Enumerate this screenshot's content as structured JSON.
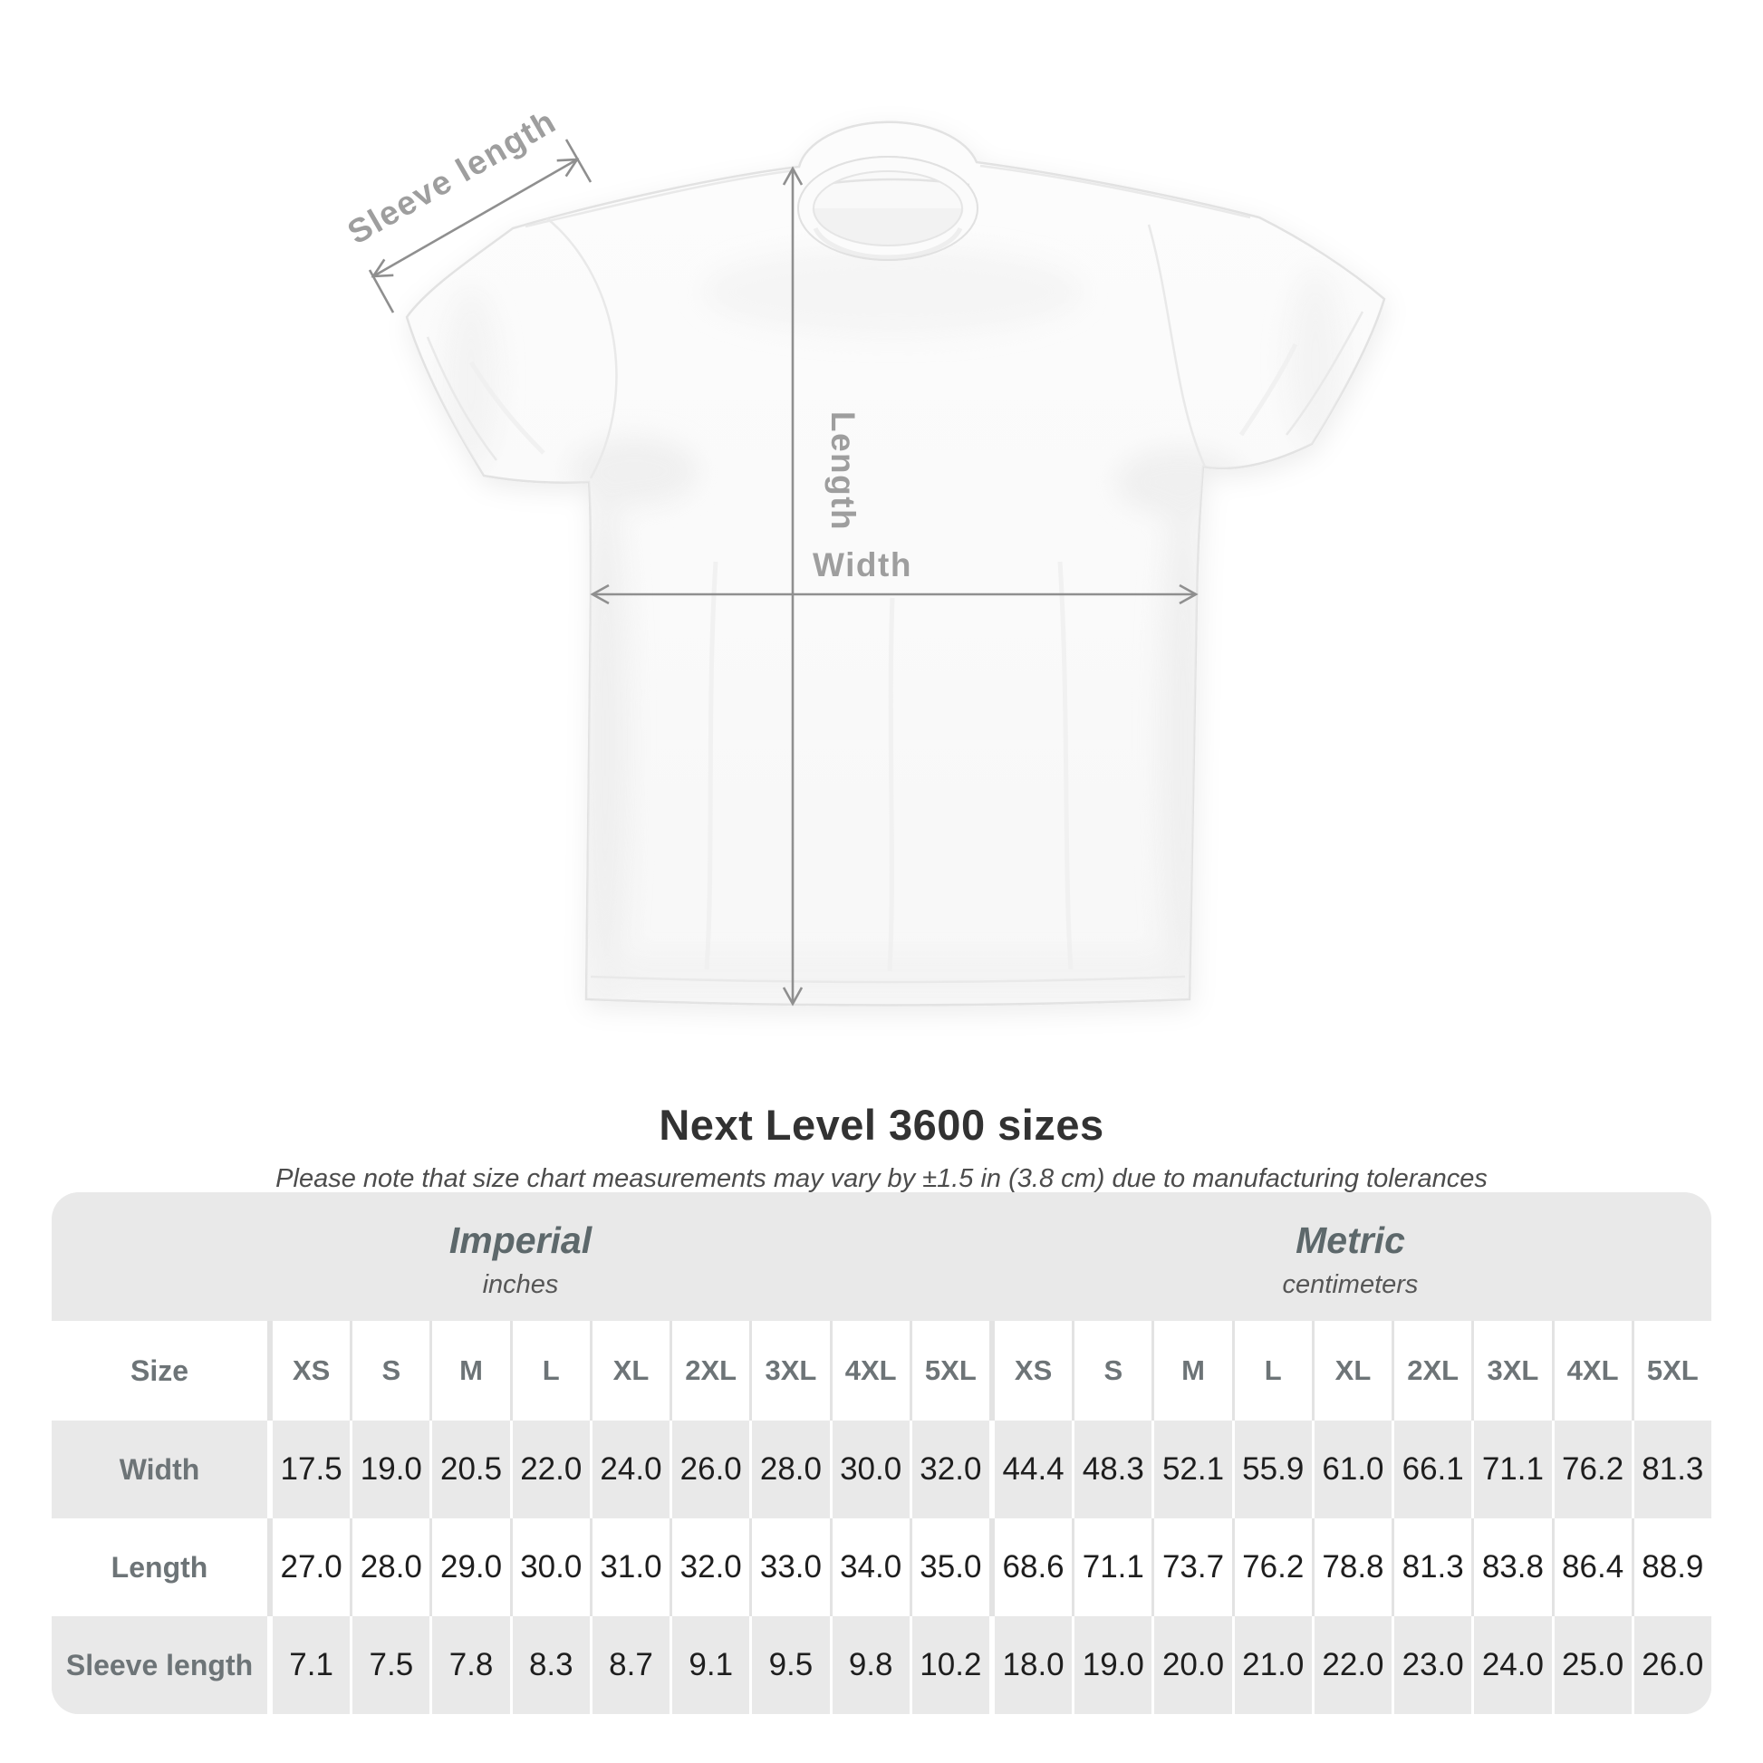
{
  "diagram": {
    "sleeve_length_label": "Sleeve length",
    "length_label": "Length",
    "width_label": "Width",
    "annotation_color": "#9e9e9e"
  },
  "heading": {
    "title": "Next Level 3600 sizes",
    "subtitle": "Please note that size chart measurements may vary by ±1.5 in (3.8 cm) due to manufacturing tolerances"
  },
  "size_chart": {
    "unit_groups": [
      {
        "label": "Imperial",
        "unit": "inches"
      },
      {
        "label": "Metric",
        "unit": "centimeters"
      }
    ],
    "size_column_header": "Size",
    "sizes": [
      "XS",
      "S",
      "M",
      "L",
      "XL",
      "2XL",
      "3XL",
      "4XL",
      "5XL"
    ],
    "rows": [
      {
        "label": "Width",
        "imperial": [
          "17.5",
          "19.0",
          "20.5",
          "22.0",
          "24.0",
          "26.0",
          "28.0",
          "30.0",
          "32.0"
        ],
        "metric": [
          "44.4",
          "48.3",
          "52.1",
          "55.9",
          "61.0",
          "66.1",
          "71.1",
          "76.2",
          "81.3"
        ]
      },
      {
        "label": "Length",
        "imperial": [
          "27.0",
          "28.0",
          "29.0",
          "30.0",
          "31.0",
          "32.0",
          "33.0",
          "34.0",
          "35.0"
        ],
        "metric": [
          "68.6",
          "71.1",
          "73.7",
          "76.2",
          "78.8",
          "81.3",
          "83.8",
          "86.4",
          "88.9"
        ]
      },
      {
        "label": "Sleeve length",
        "imperial": [
          "7.1",
          "7.5",
          "7.8",
          "8.3",
          "8.7",
          "9.1",
          "9.5",
          "9.8",
          "10.2"
        ],
        "metric": [
          "18.0",
          "19.0",
          "20.0",
          "21.0",
          "22.0",
          "23.0",
          "24.0",
          "25.0",
          "26.0"
        ]
      }
    ],
    "colors": {
      "container_bg": "#e9e9e9",
      "row_alt_bg": "#ffffff",
      "header_text": "#6d7477",
      "value_text": "#1e1e1e"
    }
  }
}
